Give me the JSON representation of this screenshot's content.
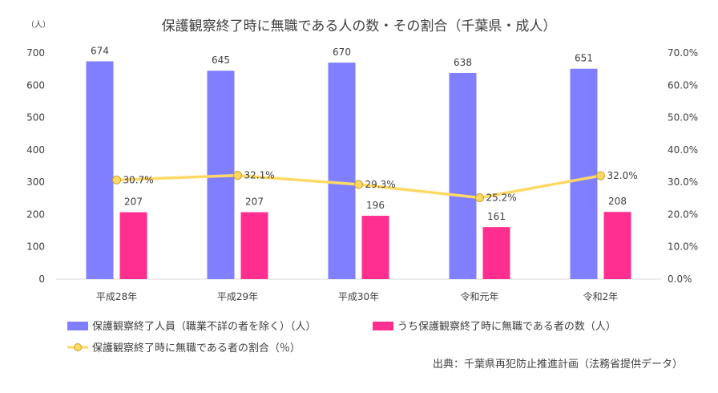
{
  "chart_data": {
    "type": "bar",
    "title": "保護観察終了時に無職である人の数・その割合（千葉県・成人）",
    "y_unit_label": "（人）",
    "categories": [
      "平成28年",
      "平成29年",
      "平成30年",
      "令和元年",
      "令和2年"
    ],
    "ylim": [
      0,
      700
    ],
    "yticks": [
      0,
      100,
      200,
      300,
      400,
      500,
      600,
      700
    ],
    "y2lim": [
      0,
      70
    ],
    "y2ticks": [
      "0.0%",
      "10.0%",
      "20.0%",
      "30.0%",
      "40.0%",
      "50.0%",
      "60.0%",
      "70.0%"
    ],
    "grid": false,
    "legend_position": "bottom",
    "series": [
      {
        "name": "保護観察終了人員（職業不詳の者を除く）（人）",
        "type": "bar",
        "axis": "left",
        "color": "#7f7fff",
        "values": [
          674,
          645,
          670,
          638,
          651
        ],
        "labels": [
          "674",
          "645",
          "670",
          "638",
          "651"
        ]
      },
      {
        "name": "うち保護観察終了時に無職である者の数（人）",
        "type": "bar",
        "axis": "left",
        "color": "#ff2e8f",
        "values": [
          207,
          207,
          196,
          161,
          208
        ],
        "labels": [
          "207",
          "207",
          "196",
          "161",
          "208"
        ]
      },
      {
        "name": "保護観察終了時に無職である者の割合（％）",
        "type": "line",
        "axis": "right",
        "color": "#ffd966",
        "values": [
          30.7,
          32.1,
          29.3,
          25.2,
          32.0
        ],
        "labels": [
          "30.7%",
          "32.1%",
          "29.3%",
          "25.2%",
          "32.0%"
        ]
      }
    ],
    "source": "出典：千葉県再犯防止推進計画（法務省提供データ）"
  }
}
